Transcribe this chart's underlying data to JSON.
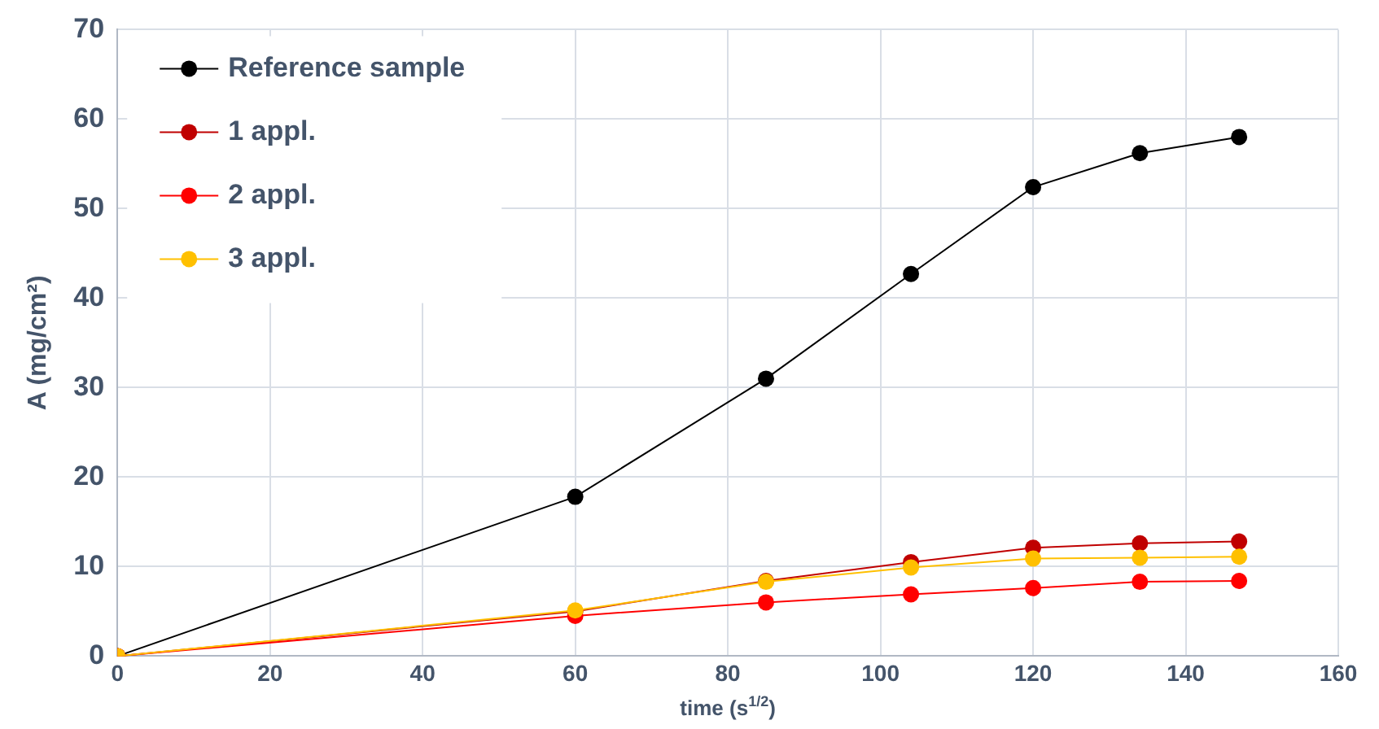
{
  "chart_data": {
    "type": "line",
    "xlabel": "time (s$^{1/2}$)",
    "ylabel": "A (mg/cm²)",
    "x": [
      0,
      60,
      85,
      104,
      120,
      134,
      147
    ],
    "series": [
      {
        "name": "Reference sample",
        "color": "#000000",
        "values": [
          0,
          17.8,
          31,
          42.7,
          52.4,
          56.2,
          58
        ]
      },
      {
        "name": "1 appl.",
        "color": "#c00000",
        "values": [
          0,
          5,
          8.4,
          10.5,
          12.1,
          12.6,
          12.8
        ]
      },
      {
        "name": "2 appl.",
        "color": "#ff0000",
        "values": [
          0,
          4.5,
          6,
          6.9,
          7.6,
          8.3,
          8.4
        ]
      },
      {
        "name": "3 appl.",
        "color": "#ffc000",
        "values": [
          0,
          5.1,
          8.3,
          9.9,
          10.9,
          11,
          11.1
        ]
      }
    ],
    "xlim": [
      0,
      160
    ],
    "xticks": [
      0,
      20,
      40,
      60,
      80,
      100,
      120,
      140,
      160
    ],
    "ylim": [
      0,
      70
    ],
    "yticks": [
      0,
      10,
      20,
      30,
      40,
      50,
      60,
      70
    ],
    "grid": true,
    "legend": "top left",
    "marker": "circle",
    "line_style": "solid"
  }
}
